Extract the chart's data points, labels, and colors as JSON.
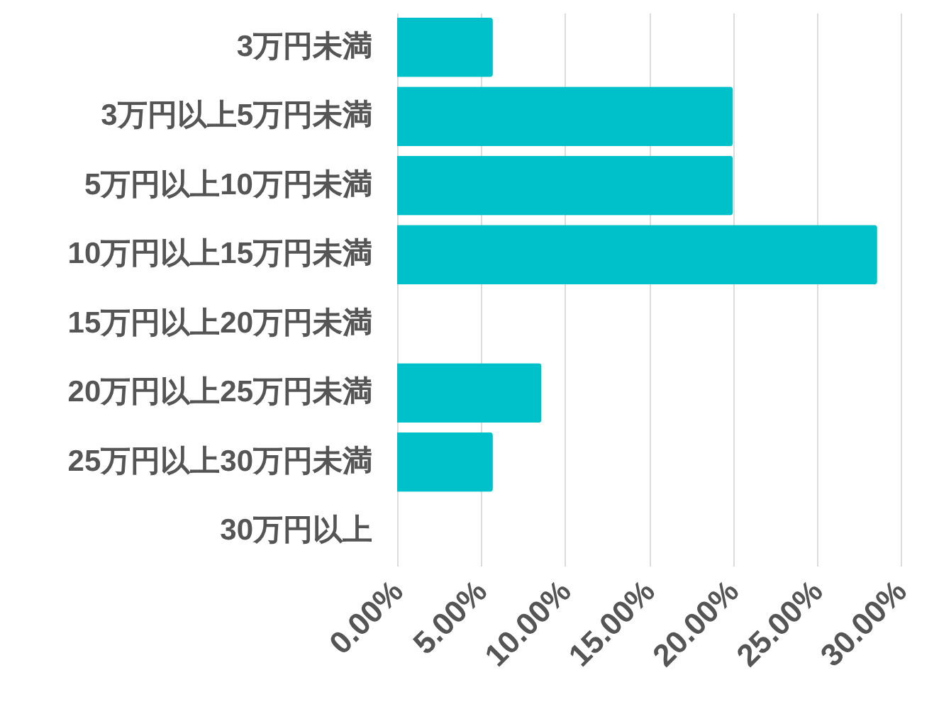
{
  "chart_data": {
    "type": "bar",
    "orientation": "horizontal",
    "categories": [
      "3万円未満",
      "3万円以上5万円未満",
      "5万円以上10万円未満",
      "10万円以上15万円未満",
      "15万円以上20万円未満",
      "20万円以上25万円未満",
      "25万円以上30万円未満",
      "30万円以上"
    ],
    "values": [
      5.7,
      20,
      20,
      28.6,
      0,
      8.6,
      5.7,
      0
    ],
    "color": "#00c1c9",
    "xlim": [
      0,
      30
    ],
    "xticks": [
      {
        "value": 0,
        "label": "0.00%"
      },
      {
        "value": 5,
        "label": "5.00%"
      },
      {
        "value": 10,
        "label": "10.00%"
      },
      {
        "value": 15,
        "label": "15.00%"
      },
      {
        "value": 20,
        "label": "20.00%"
      },
      {
        "value": 25,
        "label": "25.00%"
      },
      {
        "value": 30,
        "label": "30.00%"
      }
    ],
    "grid": "x"
  }
}
